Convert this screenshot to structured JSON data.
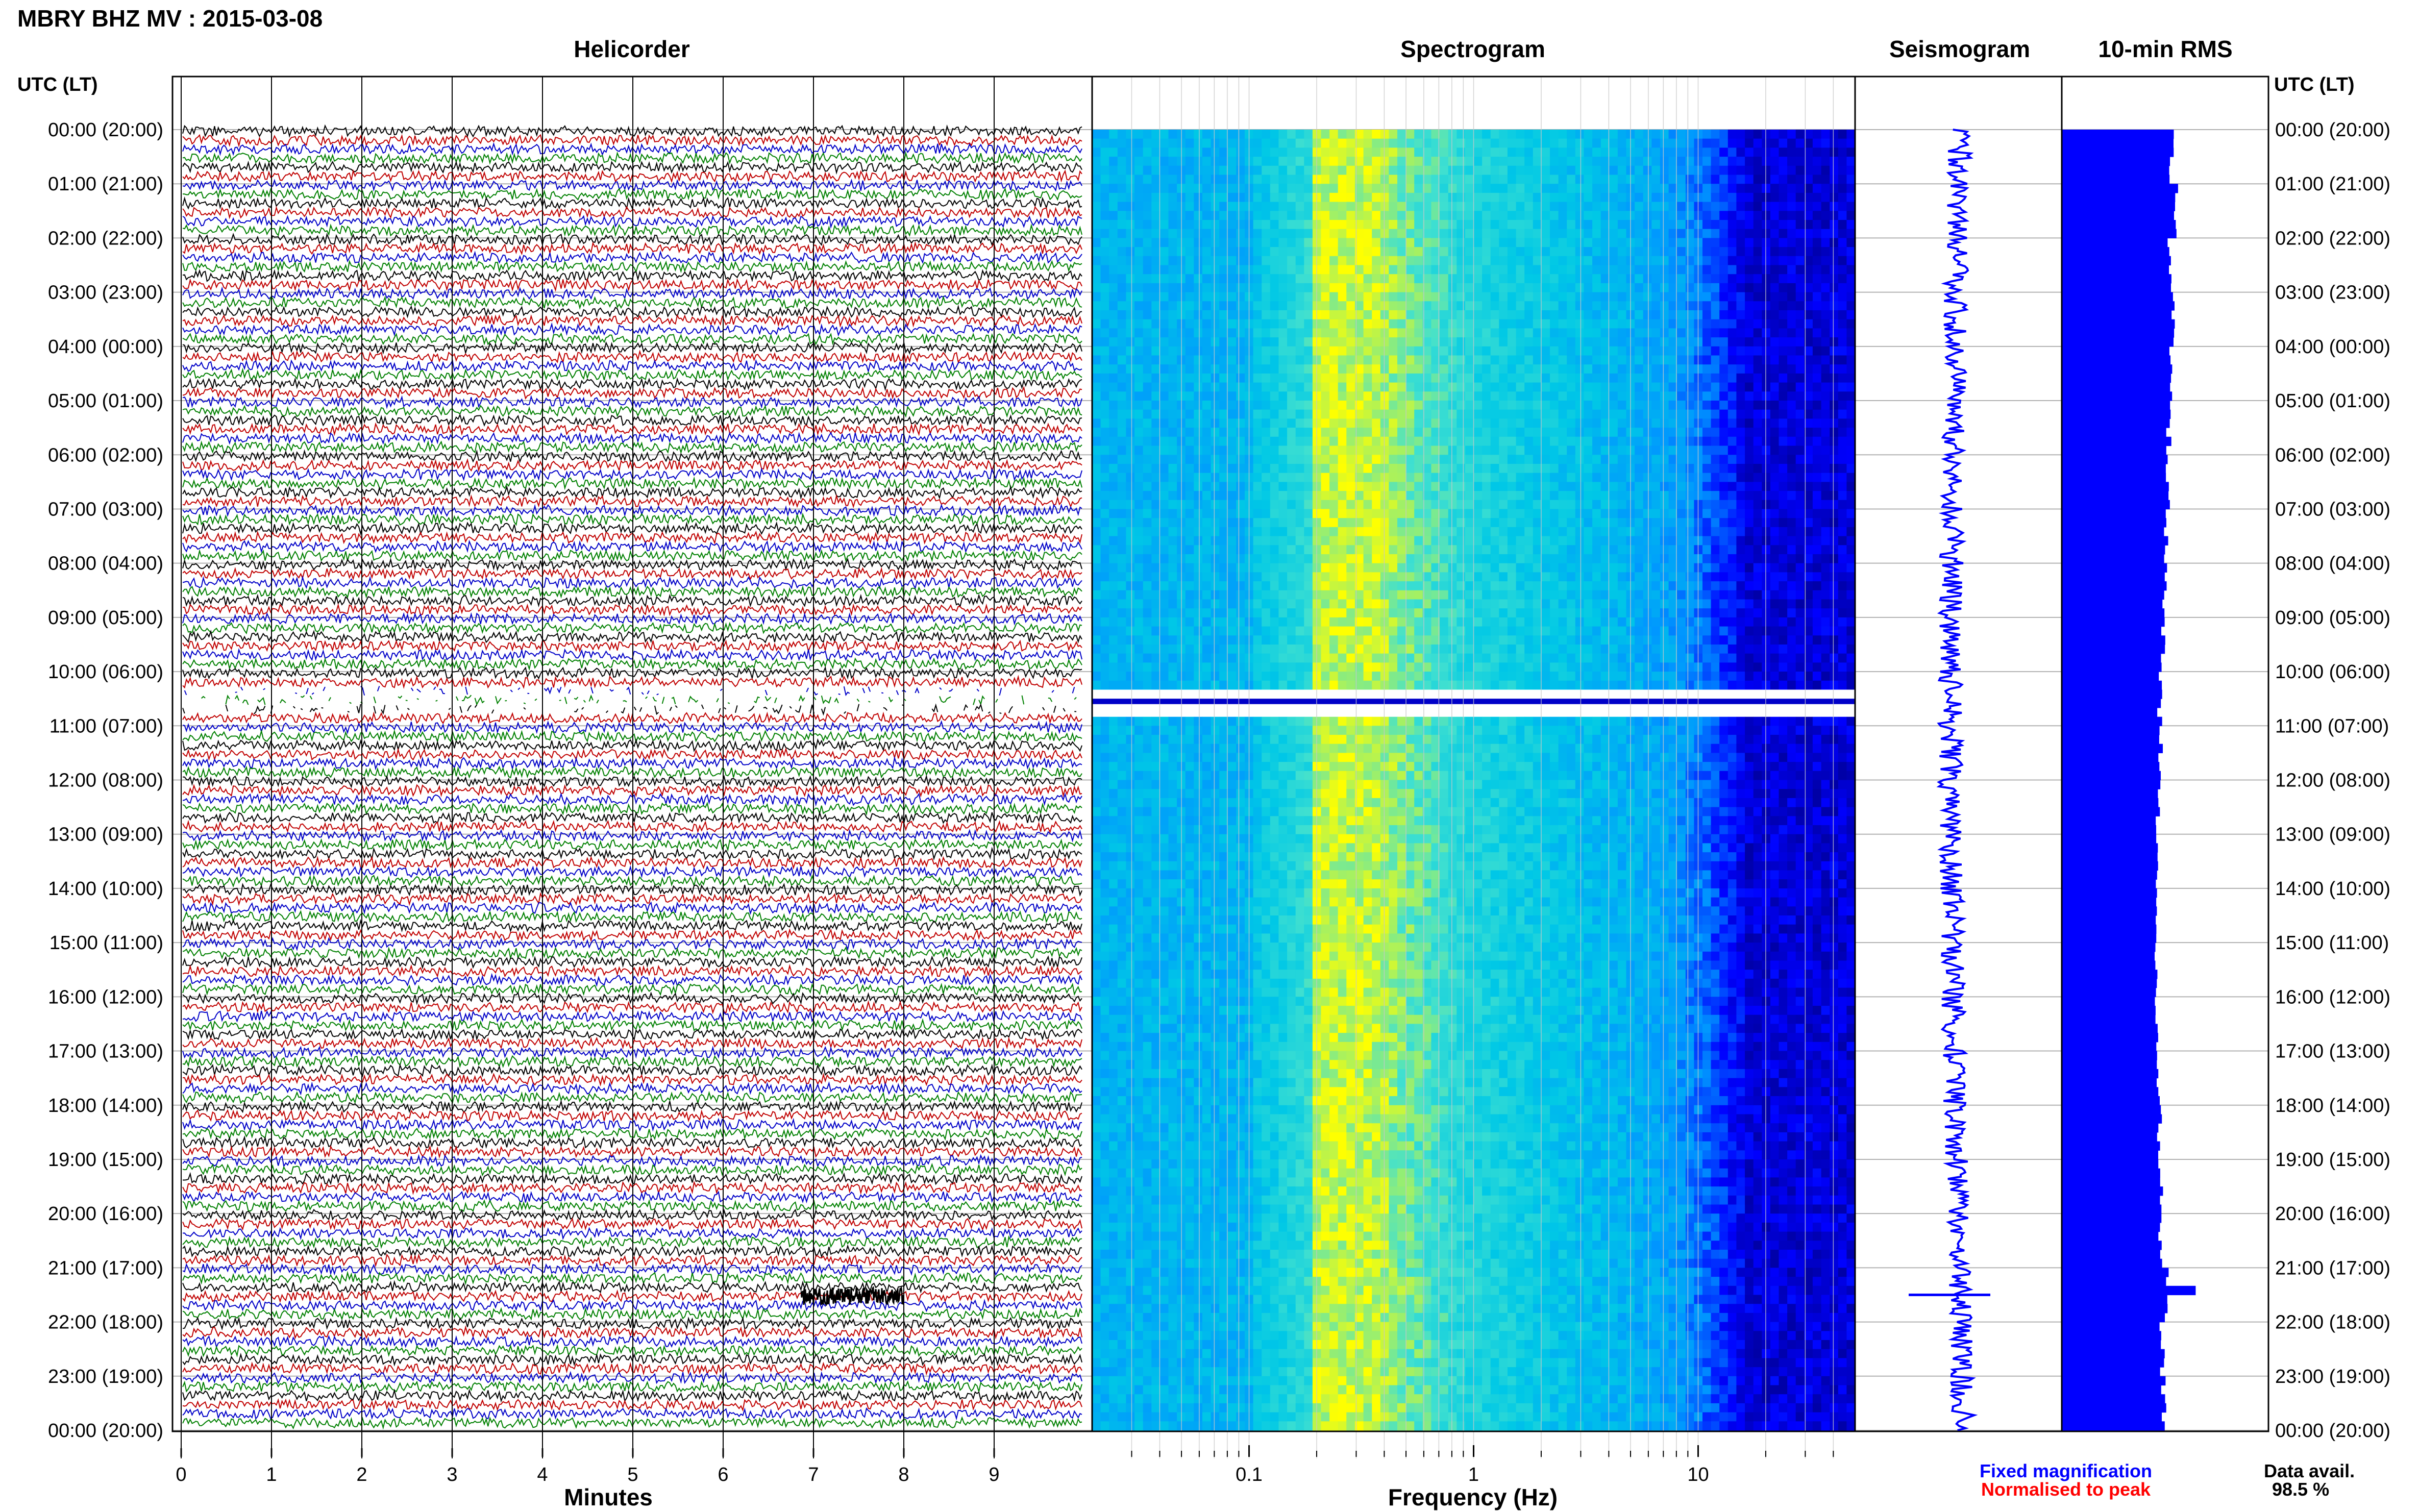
{
  "header": {
    "title": "MBRY BHZ MV : 2015-03-08",
    "panel_titles": [
      "Helicorder",
      "Spectrogram",
      "Seismogram",
      "10-min RMS"
    ],
    "utc_label_left": "UTC (LT)",
    "utc_label_right": "UTC (LT)"
  },
  "time_labels": [
    "00:00 (20:00)",
    "01:00 (21:00)",
    "02:00 (22:00)",
    "03:00 (23:00)",
    "04:00 (00:00)",
    "05:00 (01:00)",
    "06:00 (02:00)",
    "07:00 (03:00)",
    "08:00 (04:00)",
    "09:00 (05:00)",
    "10:00 (06:00)",
    "11:00 (07:00)",
    "12:00 (08:00)",
    "13:00 (09:00)",
    "14:00 (10:00)",
    "15:00 (11:00)",
    "16:00 (12:00)",
    "17:00 (13:00)",
    "18:00 (14:00)",
    "19:00 (15:00)",
    "20:00 (16:00)",
    "21:00 (17:00)",
    "22:00 (18:00)",
    "23:00 (19:00)",
    "00:00 (20:00)"
  ],
  "helicorder": {
    "x_ticks": [
      "0",
      "1",
      "2",
      "3",
      "4",
      "5",
      "6",
      "7",
      "8",
      "9"
    ],
    "x_label": "Minutes",
    "trace_colors": [
      "#000000",
      "#c00000",
      "#0000c8",
      "#008000"
    ]
  },
  "spectrogram": {
    "x_ticks": [
      "0.1",
      "1",
      "10"
    ],
    "x_label": "Frequency (Hz)"
  },
  "legend": {
    "fixed": "Fixed magnification",
    "fixed_color": "#0000ff",
    "normalised": "Normalised to peak",
    "normalised_color": "#ff0000"
  },
  "data_availability": {
    "label": "Data avail.",
    "value": "98.5 %"
  },
  "chart_data": [
    {
      "type": "line",
      "title": "Helicorder",
      "xlabel": "Minutes",
      "ylabel": "UTC (LT)",
      "xlim": [
        0,
        10
      ],
      "rows_per_hour": 6,
      "note_gap_utc": "10:00-11:00"
    },
    {
      "type": "heatmap",
      "title": "Spectrogram",
      "xlabel": "Frequency (Hz)",
      "x_scale": "log",
      "xlim": [
        0.02,
        50
      ],
      "colormap": [
        "#000080",
        "#0000ff",
        "#00bfff",
        "#40e0d0",
        "#ffff00"
      ]
    },
    {
      "type": "line",
      "title": "Seismogram",
      "color": "#0000ff"
    },
    {
      "type": "bar",
      "title": "10-min RMS",
      "orientation": "horizontal",
      "color": "#0000ff",
      "categories": [
        "00:00",
        "01:00",
        "02:00",
        "03:00",
        "04:00",
        "05:00",
        "06:00",
        "07:00",
        "08:00",
        "09:00",
        "10:00",
        "11:00",
        "12:00",
        "13:00",
        "14:00",
        "15:00",
        "16:00",
        "17:00",
        "18:00",
        "19:00",
        "20:00",
        "21:00",
        "22:00",
        "23:00"
      ],
      "values": [
        0.82,
        0.85,
        0.8,
        0.83,
        0.81,
        0.8,
        0.79,
        0.78,
        0.77,
        0.76,
        0.73,
        0.74,
        0.72,
        0.72,
        0.72,
        0.71,
        0.71,
        0.72,
        0.73,
        0.74,
        0.74,
        0.78,
        0.75,
        0.76
      ]
    }
  ]
}
